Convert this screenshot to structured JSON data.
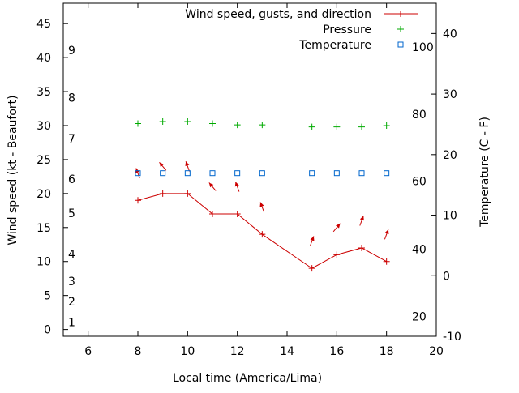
{
  "chart_data": {
    "type": "line",
    "xlabel": "Local time (America/Lima)",
    "ylabel_left": "Wind speed (kt - Beaufort)",
    "ylabel_right": "Temperature (C - F)",
    "xlim": [
      5,
      20
    ],
    "ylim_left": [
      -1,
      48
    ],
    "ylim_right": [
      -10,
      45
    ],
    "x_ticks": [
      6,
      8,
      10,
      12,
      14,
      16,
      18,
      20
    ],
    "y_left_ticks": [
      0,
      5,
      10,
      15,
      20,
      25,
      30,
      35,
      40,
      45
    ],
    "y_right_ticks": [
      -10,
      0,
      10,
      20,
      30,
      40
    ],
    "beaufort_labels": [
      {
        "label": "1",
        "speed": 1.1
      },
      {
        "label": "2",
        "speed": 4.1
      },
      {
        "label": "3",
        "speed": 7.1
      },
      {
        "label": "4",
        "speed": 11.1
      },
      {
        "label": "5",
        "speed": 17.1
      },
      {
        "label": "6",
        "speed": 22.1
      },
      {
        "label": "7",
        "speed": 28.1
      },
      {
        "label": "8",
        "speed": 34.1
      },
      {
        "label": "9",
        "speed": 41.1
      }
    ],
    "fahrenheit_labels": [
      {
        "label": "20",
        "celsius": -6.7
      },
      {
        "label": "40",
        "celsius": 4.4
      },
      {
        "label": "60",
        "celsius": 15.6
      },
      {
        "label": "80",
        "celsius": 26.7
      },
      {
        "label": "100",
        "celsius": 37.8
      }
    ],
    "grid": false,
    "legend_position": "top-right",
    "colors": {
      "wind": "#cc0000",
      "pressure": "#00aa00",
      "temperature": "#0066cc"
    },
    "series": [
      {
        "name": "Wind speed, gusts, and direction",
        "axis": "left",
        "x": [
          8,
          9,
          10,
          11,
          12,
          13,
          15,
          16,
          17,
          18
        ],
        "values": [
          19,
          20,
          20,
          17,
          17,
          14,
          9,
          11,
          12,
          10
        ],
        "direction_deg": [
          160,
          140,
          160,
          140,
          160,
          160,
          200,
          220,
          200,
          200
        ]
      },
      {
        "name": "Pressure",
        "axis": "left",
        "x": [
          8,
          9,
          10,
          11,
          12,
          13,
          15,
          16,
          17,
          18
        ],
        "values": [
          30.3,
          30.6,
          30.6,
          30.3,
          30.1,
          30.1,
          29.8,
          29.8,
          29.8,
          30.0
        ]
      },
      {
        "name": "Temperature",
        "axis": "left",
        "x": [
          8,
          9,
          10,
          11,
          12,
          13,
          15,
          16,
          17,
          18
        ],
        "values": [
          23,
          23,
          23,
          23,
          23,
          23,
          23,
          23,
          23,
          23
        ]
      }
    ]
  }
}
